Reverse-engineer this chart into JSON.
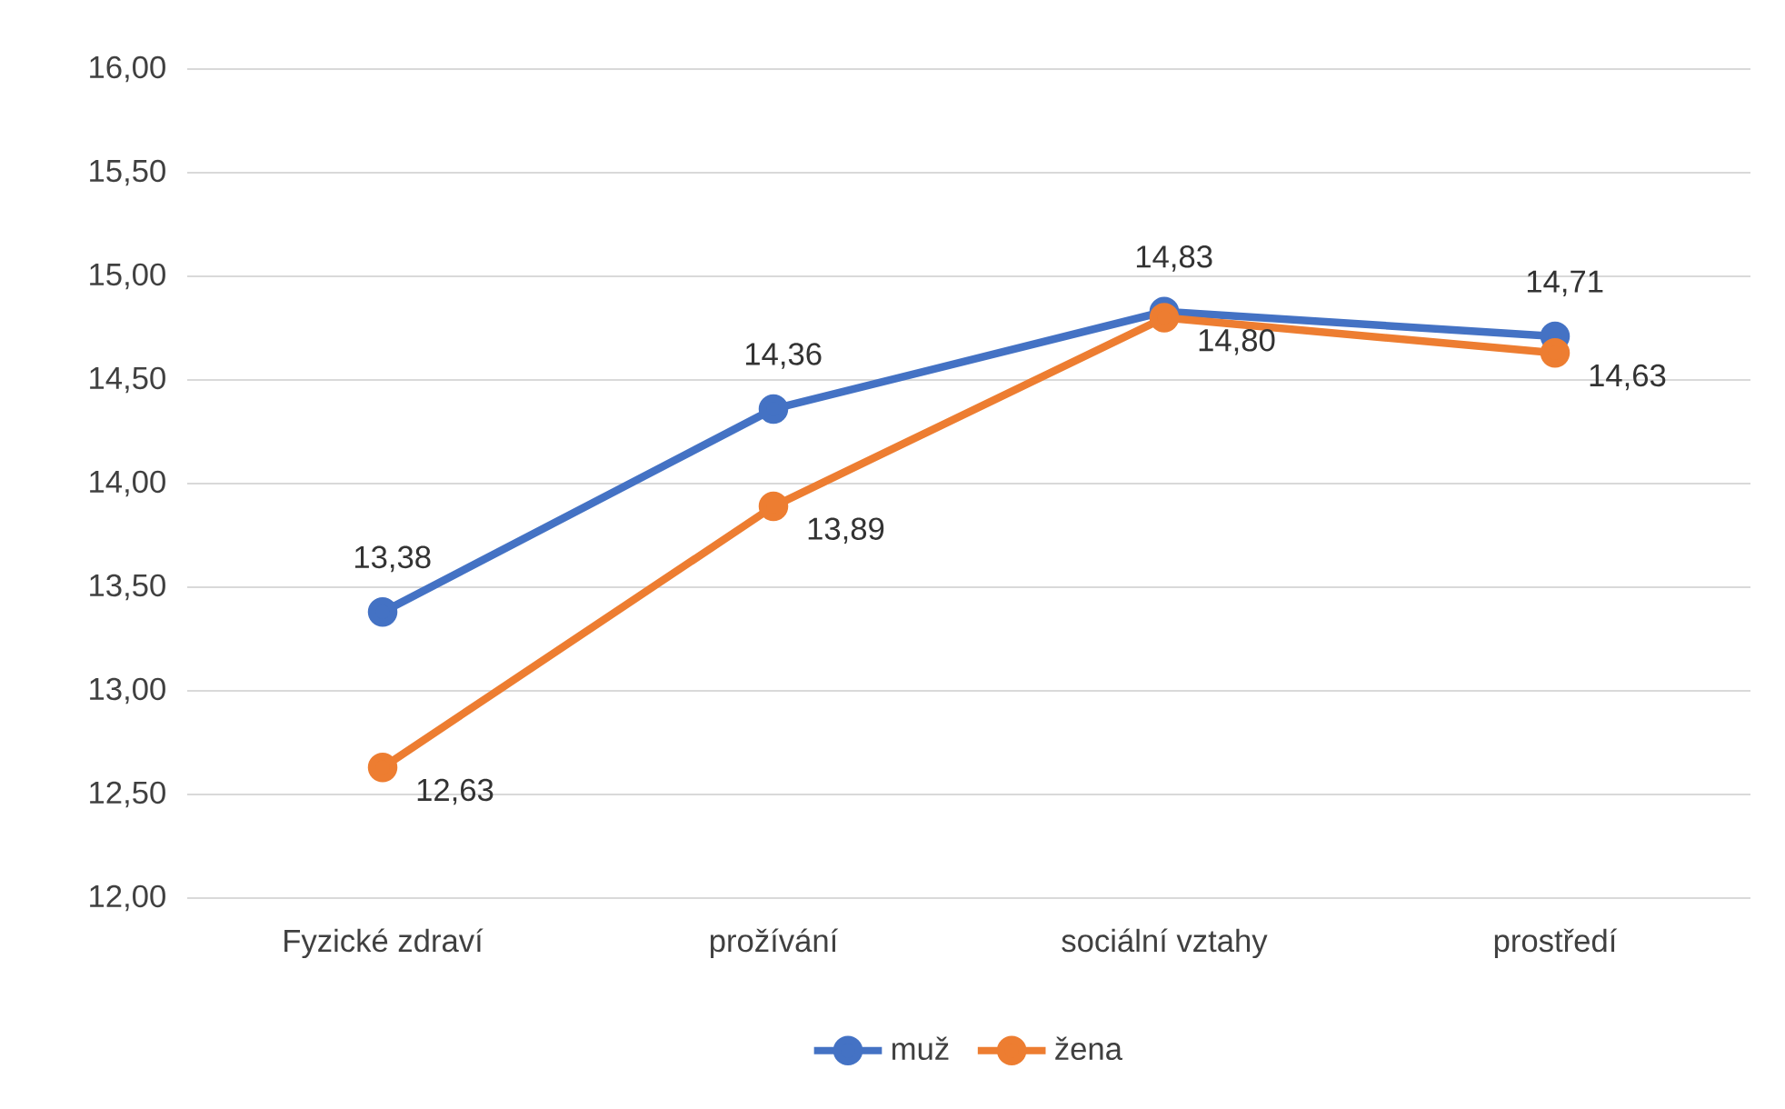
{
  "chart_data": {
    "type": "line",
    "categories": [
      "Fyzické zdraví",
      "prožívání",
      "sociální vztahy",
      "prostředí"
    ],
    "series": [
      {
        "name": "muž",
        "color": "#4472c4",
        "values": [
          13.38,
          14.36,
          14.83,
          14.71
        ],
        "value_labels": [
          "13,38",
          "14,36",
          "14,83",
          "14,71"
        ]
      },
      {
        "name": "žena",
        "color": "#ed7d31",
        "values": [
          12.63,
          13.89,
          14.8,
          14.63
        ],
        "value_labels": [
          "12,63",
          "13,89",
          "14,80",
          "14,63"
        ]
      }
    ],
    "ylim": [
      12,
      16
    ],
    "yticks": [
      {
        "value": 12,
        "label": "12,00"
      },
      {
        "value": 12.5,
        "label": "12,50"
      },
      {
        "value": 13,
        "label": "13,00"
      },
      {
        "value": 13.5,
        "label": "13,50"
      },
      {
        "value": 14,
        "label": "14,00"
      },
      {
        "value": 14.5,
        "label": "14,50"
      },
      {
        "value": 15,
        "label": "15,00"
      },
      {
        "value": 15.5,
        "label": "15,50"
      },
      {
        "value": 16,
        "label": "16,00"
      }
    ],
    "grid": "y",
    "legend": "bottom",
    "marker": "circle",
    "line_style": "solid"
  }
}
